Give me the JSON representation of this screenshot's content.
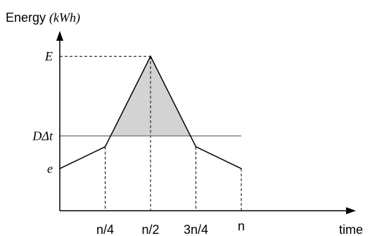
{
  "chart_data": {
    "type": "line",
    "ylabel_text": "Energy",
    "ylabel_unit": "(kWh)",
    "xlabel": "time",
    "x_ticks": [
      "n/4",
      "n/2",
      "3n/4",
      "n"
    ],
    "y_ticks": [
      "E",
      "DΔt",
      "e"
    ],
    "x_range": [
      0,
      1.2
    ],
    "y_range": [
      0,
      1.0
    ],
    "series": [
      {
        "x": [
          0,
          0.25,
          0.5,
          0.75,
          1.0
        ],
        "y": [
          0.27,
          0.41,
          0.99,
          0.41,
          0.27
        ]
      }
    ],
    "threshold": {
      "label": "DΔt",
      "y": 0.48,
      "x_end": 1.0
    },
    "shaded_region": "area above DΔt under the curve",
    "shade_color": "#d3d3d3",
    "line_color": "#000000",
    "threshold_color": "#808080"
  }
}
